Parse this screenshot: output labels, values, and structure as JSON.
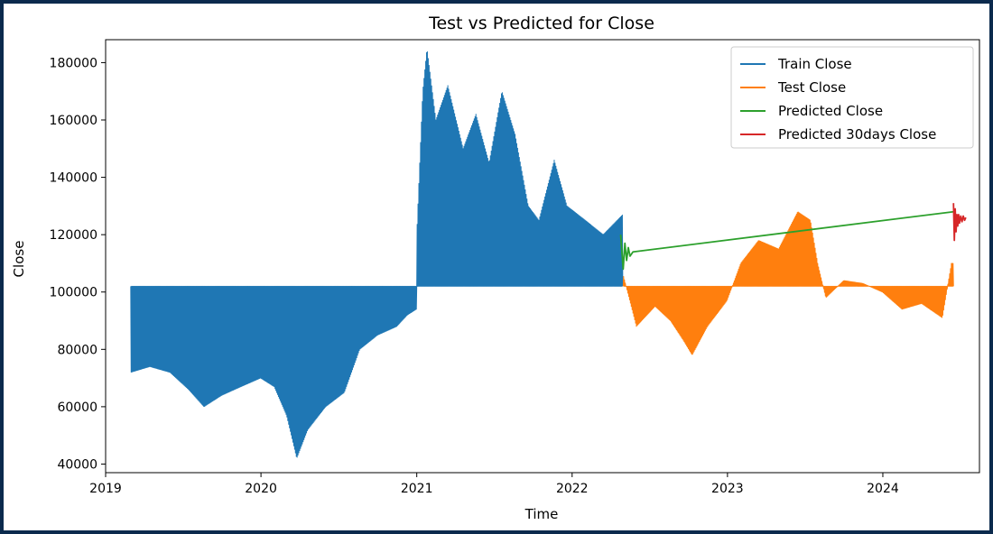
{
  "chart_data": {
    "type": "line",
    "title": "Test vs Predicted for Close",
    "xlabel": "Time",
    "ylabel": "Close",
    "xlim": [
      "2019-01-01",
      "2024-08-15"
    ],
    "ylim": [
      37000,
      188000
    ],
    "x_ticks": [
      "2019-01-01",
      "2020-01-01",
      "2021-01-01",
      "2022-01-01",
      "2023-01-01",
      "2024-01-01"
    ],
    "x_tick_labels": [
      "2019",
      "2020",
      "2021",
      "2022",
      "2023",
      "2024"
    ],
    "y_ticks": [
      40000,
      60000,
      80000,
      100000,
      120000,
      140000,
      160000,
      180000
    ],
    "y_tick_labels": [
      "40000",
      "60000",
      "80000",
      "100000",
      "120000",
      "140000",
      "160000",
      "180000"
    ],
    "legend_position": "top-right",
    "grid": false,
    "series": [
      {
        "name": "Train Close",
        "color": "#1f77b4",
        "style": "oscillating",
        "baseline": 102000,
        "start": "2019-03-01",
        "end": "2022-04-30",
        "envelope": [
          [
            "2019-03-01",
            72000
          ],
          [
            "2019-04-15",
            74000
          ],
          [
            "2019-06-01",
            72000
          ],
          [
            "2019-07-15",
            66000
          ],
          [
            "2019-08-20",
            60000
          ],
          [
            "2019-10-01",
            64000
          ],
          [
            "2019-11-15",
            67000
          ],
          [
            "2019-12-31",
            70000
          ],
          [
            "2020-02-01",
            67000
          ],
          [
            "2020-03-01",
            57000
          ],
          [
            "2020-03-25",
            42000
          ],
          [
            "2020-04-20",
            52000
          ],
          [
            "2020-06-01",
            60000
          ],
          [
            "2020-07-15",
            65000
          ],
          [
            "2020-08-20",
            80000
          ],
          [
            "2020-10-01",
            85000
          ],
          [
            "2020-11-15",
            88000
          ],
          [
            "2020-12-10",
            92000
          ],
          [
            "2020-12-31",
            94000
          ],
          [
            "2021-01-01",
            120000
          ],
          [
            "2021-01-15",
            170000
          ],
          [
            "2021-01-25",
            185000
          ],
          [
            "2021-02-15",
            160000
          ],
          [
            "2021-03-15",
            172000
          ],
          [
            "2021-04-20",
            150000
          ],
          [
            "2021-05-20",
            162000
          ],
          [
            "2021-06-20",
            145000
          ],
          [
            "2021-07-20",
            170000
          ],
          [
            "2021-08-20",
            155000
          ],
          [
            "2021-09-20",
            130000
          ],
          [
            "2021-10-15",
            125000
          ],
          [
            "2021-11-20",
            146000
          ],
          [
            "2021-12-20",
            130000
          ],
          [
            "2022-02-01",
            125000
          ],
          [
            "2022-03-15",
            120000
          ],
          [
            "2022-04-30",
            127000
          ]
        ]
      },
      {
        "name": "Test Close",
        "color": "#ff7f0e",
        "style": "oscillating",
        "baseline": 102000,
        "start": "2022-05-01",
        "end": "2024-06-15",
        "envelope": [
          [
            "2022-05-01",
            106000
          ],
          [
            "2022-06-01",
            88000
          ],
          [
            "2022-07-15",
            95000
          ],
          [
            "2022-08-20",
            90000
          ],
          [
            "2022-09-20",
            83000
          ],
          [
            "2022-10-10",
            78000
          ],
          [
            "2022-11-15",
            88000
          ],
          [
            "2022-12-31",
            97000
          ],
          [
            "2023-02-01",
            110000
          ],
          [
            "2023-03-15",
            118000
          ],
          [
            "2023-05-01",
            115000
          ],
          [
            "2023-06-15",
            128000
          ],
          [
            "2023-07-15",
            125000
          ],
          [
            "2023-08-01",
            110000
          ],
          [
            "2023-08-20",
            98000
          ],
          [
            "2023-10-01",
            104000
          ],
          [
            "2023-11-15",
            103000
          ],
          [
            "2023-12-31",
            100000
          ],
          [
            "2024-02-15",
            94000
          ],
          [
            "2024-04-01",
            96000
          ],
          [
            "2024-05-20",
            91000
          ],
          [
            "2024-06-10",
            110000
          ]
        ]
      },
      {
        "name": "Predicted Close",
        "color": "#2ca02c",
        "style": "line",
        "points": [
          [
            "2022-04-25",
            120000
          ],
          [
            "2022-05-01",
            108000
          ],
          [
            "2022-05-05",
            117000
          ],
          [
            "2022-05-09",
            111000
          ],
          [
            "2022-05-13",
            115500
          ],
          [
            "2022-05-17",
            112500
          ],
          [
            "2022-05-24",
            114000
          ],
          [
            "2024-06-15",
            128000
          ]
        ]
      },
      {
        "name": "Predicted 30days Close",
        "color": "#d62728",
        "style": "line",
        "points": [
          [
            "2024-06-15",
            131000
          ],
          [
            "2024-06-17",
            118000
          ],
          [
            "2024-06-19",
            129000
          ],
          [
            "2024-06-21",
            121000
          ],
          [
            "2024-06-23",
            127000
          ],
          [
            "2024-06-25",
            123000
          ],
          [
            "2024-06-27",
            127000
          ],
          [
            "2024-06-29",
            124000
          ],
          [
            "2024-07-02",
            126500
          ],
          [
            "2024-07-05",
            124500
          ],
          [
            "2024-07-08",
            126500
          ],
          [
            "2024-07-11",
            125000
          ],
          [
            "2024-07-14",
            126000
          ]
        ]
      }
    ]
  }
}
